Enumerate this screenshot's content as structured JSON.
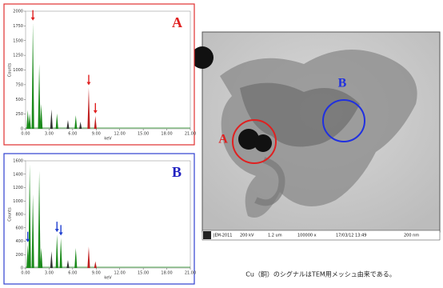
{
  "chart_data": [
    {
      "type": "spectrum",
      "panel_label": "A",
      "frame_color": "#e03030",
      "label_color": "#e02020",
      "x_label": "keV",
      "y_label": "Counts",
      "xlim": [
        0,
        21
      ],
      "xticks": [
        {
          "value": 0,
          "label": "0.00"
        },
        {
          "value": 3,
          "label": "3.00"
        },
        {
          "value": 6,
          "label": "6.00"
        },
        {
          "value": 9,
          "label": "9.00"
        },
        {
          "value": 12,
          "label": "12.00"
        },
        {
          "value": 15,
          "label": "15.00"
        },
        {
          "value": 18,
          "label": "18.00"
        },
        {
          "value": 21,
          "label": "21.00"
        }
      ],
      "ylim": [
        0,
        2000
      ],
      "yticks": [
        0,
        250,
        500,
        750,
        1000,
        1250,
        1500,
        1750,
        2000
      ],
      "x": [
        0.28,
        0.52,
        0.93,
        1.74,
        2.0,
        3.3,
        4.0,
        5.4,
        6.4,
        7.0,
        8.05,
        8.9
      ],
      "values": [
        320,
        260,
        1800,
        1100,
        420,
        330,
        260,
        150,
        230,
        120,
        700,
        220
      ],
      "colors": [
        "#1a8a1a",
        "#1a8a1a",
        "#1a8a1a",
        "#1a8a1a",
        "#1a8a1a",
        "#333",
        "#1a8a1a",
        "#333",
        "#1a8a1a",
        "#333",
        "#c02020",
        "#c02020"
      ],
      "arrows": [
        0.93,
        8.05,
        8.9
      ],
      "arrow_color": "#e02020"
    },
    {
      "type": "spectrum",
      "panel_label": "B",
      "frame_color": "#3040d0",
      "label_color": "#2020c0",
      "x_label": "keV",
      "y_label": "Counts",
      "xlim": [
        0,
        21
      ],
      "xticks": [
        {
          "value": 0,
          "label": "0.00"
        },
        {
          "value": 3,
          "label": "3.00"
        },
        {
          "value": 6,
          "label": "6.00"
        },
        {
          "value": 9,
          "label": "9.00"
        },
        {
          "value": 12,
          "label": "12.00"
        },
        {
          "value": 15,
          "label": "15.00"
        },
        {
          "value": 18,
          "label": "18.00"
        },
        {
          "value": 21,
          "label": "21.00"
        }
      ],
      "ylim": [
        0,
        1600
      ],
      "yticks": [
        0,
        200,
        400,
        600,
        800,
        1000,
        1200,
        1400,
        1600
      ],
      "x": [
        0.28,
        0.52,
        0.93,
        1.74,
        2.0,
        3.3,
        4.0,
        4.5,
        5.4,
        6.4,
        8.05,
        8.9
      ],
      "values": [
        350,
        1550,
        1100,
        1450,
        300,
        250,
        500,
        450,
        120,
        300,
        320,
        100
      ],
      "colors": [
        "#1a8a1a",
        "#1a8a1a",
        "#1a8a1a",
        "#1a8a1a",
        "#1a8a1a",
        "#333",
        "#1a8a1a",
        "#1a8a1a",
        "#333",
        "#1a8a1a",
        "#c02020",
        "#c02020"
      ],
      "arrows": [
        0.28,
        4.0,
        4.5
      ],
      "arrow_color": "#2040d0"
    }
  ],
  "image": {
    "label_a": "A",
    "label_b": "B",
    "info_bar": [
      "JEM-2011",
      "200 kV",
      "1.2 um",
      "100000 x",
      "17/03/12 13:49",
      "200 nm"
    ]
  },
  "caption": "Cu（銅）のシグナルはTEM用メッシュ由来である。"
}
